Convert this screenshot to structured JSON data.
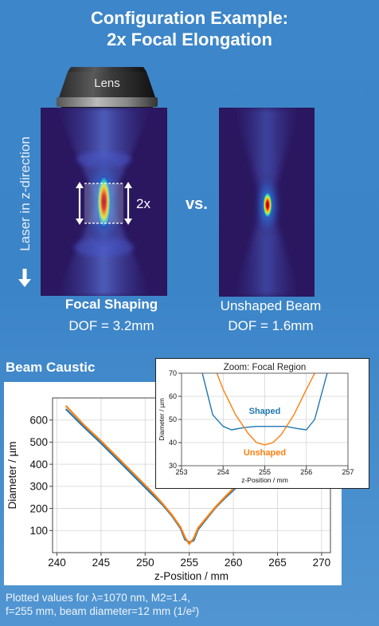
{
  "header": {
    "title_line1": "Configuration Example:",
    "title_line2": "2x Focal Elongation"
  },
  "lens_label": "Lens",
  "axis_side_label": "Laser in z-direction",
  "shaped_panel": {
    "label": "Focal Shaping",
    "dof": "DOF = 3.2mm",
    "factor_label": "2x"
  },
  "vs_label": "vs.",
  "unshaped_panel": {
    "label": "Unshaped Beam",
    "dof": "DOF = 1.6mm"
  },
  "caustic_title": "Beam Caustic",
  "chart_data": [
    {
      "type": "line",
      "title": "",
      "xlabel": "z-Position / mm",
      "ylabel": "Diameter / µm",
      "xlim": [
        239.5,
        271
      ],
      "ylim": [
        0,
        700
      ],
      "xticks": [
        240,
        245,
        250,
        255,
        260,
        265,
        270
      ],
      "yticks": [
        100,
        200,
        300,
        400,
        500,
        600
      ],
      "grid": true,
      "series": [
        {
          "color": "#1f77b4",
          "x": [
            241,
            243,
            245,
            247,
            249,
            251,
            252,
            253,
            254,
            254.5,
            255,
            255.5,
            256,
            257,
            258,
            259,
            261
          ],
          "y": [
            650,
            570,
            495,
            415,
            335,
            255,
            215,
            168,
            110,
            60,
            47,
            55,
            105,
            155,
            205,
            245,
            320
          ]
        },
        {
          "color": "#ff7f0e",
          "x": [
            241,
            243,
            245,
            247,
            249,
            251,
            252,
            253,
            254,
            254.5,
            255,
            255.5,
            256,
            257,
            258,
            259,
            261
          ],
          "y": [
            665,
            580,
            505,
            425,
            345,
            265,
            220,
            172,
            115,
            70,
            39,
            65,
            112,
            160,
            208,
            250,
            330
          ]
        }
      ]
    },
    {
      "type": "line",
      "title": "Zoom: Focal Region",
      "xlabel": "z-Position / mm",
      "ylabel": "Diameter / µm",
      "xlim": [
        253,
        257
      ],
      "ylim": [
        30,
        70
      ],
      "xticks": [
        253,
        254,
        255,
        256,
        257
      ],
      "yticks": [
        30,
        40,
        50,
        60,
        70
      ],
      "grid": true,
      "annotations": [
        "Shaped",
        "Unshaped"
      ],
      "series": [
        {
          "color": "#1f77b4",
          "x": [
            253.5,
            253.75,
            254.0,
            254.2,
            254.5,
            254.8,
            255.0,
            255.2,
            255.5,
            255.8,
            256.0,
            256.2,
            256.5
          ],
          "y": [
            70,
            52,
            47,
            45.5,
            46.5,
            47,
            47,
            47,
            47,
            46,
            45.5,
            50,
            70
          ]
        },
        {
          "color": "#ff7f0e",
          "x": [
            253.85,
            254.0,
            254.3,
            254.6,
            254.8,
            255.0,
            255.2,
            255.4,
            255.7,
            256.0,
            256.2
          ],
          "y": [
            70,
            63,
            52,
            44,
            40,
            39,
            40,
            43.5,
            52,
            63,
            70
          ]
        }
      ]
    }
  ],
  "footer": {
    "line1": "Plotted values for λ=1070 nm, M2=1.4,",
    "line2": "f=255 mm, beam diameter=12 mm (1/e²)"
  }
}
